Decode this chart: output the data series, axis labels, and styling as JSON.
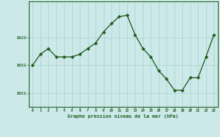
{
  "x": [
    0,
    1,
    2,
    3,
    4,
    5,
    6,
    7,
    8,
    9,
    10,
    11,
    12,
    13,
    14,
    15,
    16,
    17,
    18,
    19,
    20,
    21,
    22,
    23
  ],
  "y": [
    1022.0,
    1022.4,
    1022.6,
    1022.3,
    1022.3,
    1022.3,
    1022.4,
    1022.6,
    1022.8,
    1023.2,
    1023.5,
    1023.75,
    1023.8,
    1023.1,
    1022.6,
    1022.3,
    1021.8,
    1021.5,
    1021.1,
    1021.1,
    1021.55,
    1021.55,
    1022.3,
    1023.1
  ],
  "line_color": "#1e5c1e",
  "marker_color": "#1e5c1e",
  "bg_color": "#cce8e8",
  "grid_color": "#aad4d4",
  "axis_color": "#1e5c1e",
  "tick_label_color": "#1e5c1e",
  "xlabel": "Graphe pression niveau de la mer (hPa)",
  "xlabel_color": "#1e5c1e",
  "ylim": [
    1020.5,
    1024.3
  ],
  "yticks": [
    1021,
    1022,
    1023
  ],
  "xticks": [
    0,
    1,
    2,
    3,
    4,
    5,
    6,
    7,
    8,
    9,
    10,
    11,
    12,
    13,
    14,
    15,
    16,
    17,
    18,
    19,
    20,
    21,
    22,
    23
  ],
  "linewidth": 1.0,
  "markersize": 2.5
}
